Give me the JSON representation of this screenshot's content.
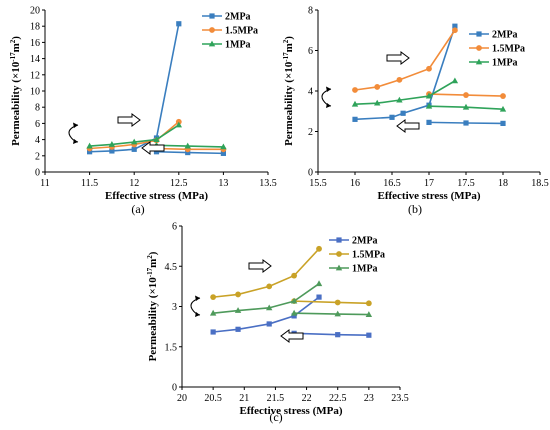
{
  "chart_data": [
    {
      "id": "a",
      "type": "line",
      "caption": "(a)",
      "xlabel": "Effective stress (MPa)",
      "ylabel_main": "Permeability (×10",
      "ylabel_exp": "-17",
      "ylabel_unit": "m",
      "ylabel_unit_exp": "2",
      "ylabel_close": ")",
      "xlim": [
        11,
        13.5
      ],
      "ylim": [
        0,
        20
      ],
      "xticks": [
        11,
        11.5,
        12,
        12.5,
        13,
        13.5
      ],
      "yticks": [
        0,
        2,
        4,
        6,
        8,
        10,
        12,
        14,
        16,
        18,
        20
      ],
      "xtick_labels": [
        "11",
        "11.5",
        "12",
        "12.5",
        "13",
        "13.5"
      ],
      "ytick_labels": [
        "0",
        "2",
        "4",
        "6",
        "8",
        "10",
        "12",
        "14",
        "16",
        "18",
        "20"
      ],
      "legend_position": "top-right",
      "series": [
        {
          "name": "2MPa",
          "color": "#3a7ebf",
          "marker": "square",
          "load": [
            [
              11.5,
              2.5
            ],
            [
              11.75,
              2.6
            ],
            [
              12.0,
              2.8
            ],
            [
              12.25,
              4.2
            ],
            [
              12.5,
              18.3
            ]
          ],
          "unload": [
            [
              12.25,
              2.5
            ],
            [
              12.6,
              2.4
            ],
            [
              13.0,
              2.3
            ]
          ]
        },
        {
          "name": "1.5MPa",
          "color": "#f28c3a",
          "marker": "circle",
          "load": [
            [
              11.5,
              2.9
            ],
            [
              11.75,
              3.1
            ],
            [
              12.0,
              3.4
            ],
            [
              12.25,
              3.9
            ],
            [
              12.5,
              6.2
            ]
          ],
          "unload": [
            [
              12.25,
              2.9
            ],
            [
              12.6,
              2.8
            ],
            [
              13.0,
              2.8
            ]
          ]
        },
        {
          "name": "1MPa",
          "color": "#2fa35a",
          "marker": "triangle",
          "load": [
            [
              11.5,
              3.2
            ],
            [
              11.75,
              3.4
            ],
            [
              12.0,
              3.7
            ],
            [
              12.25,
              4.0
            ],
            [
              12.5,
              5.8
            ]
          ],
          "unload": [
            [
              12.25,
              3.3
            ],
            [
              12.6,
              3.2
            ],
            [
              13.0,
              3.1
            ]
          ]
        }
      ]
    },
    {
      "id": "b",
      "type": "line",
      "caption": "(b)",
      "xlabel": "Effective stress (MPa)",
      "ylabel_main": "Permeability (×10",
      "ylabel_exp": "-17",
      "ylabel_unit": "m",
      "ylabel_unit_exp": "2",
      "ylabel_close": ")",
      "xlim": [
        15.5,
        18.5
      ],
      "ylim": [
        0,
        8
      ],
      "xticks": [
        15.5,
        16,
        16.5,
        17,
        17.5,
        18,
        18.5
      ],
      "yticks": [
        0,
        2,
        4,
        6,
        8
      ],
      "xtick_labels": [
        "15.5",
        "16",
        "16.5",
        "17",
        "17.5",
        "18",
        "18.5"
      ],
      "ytick_labels": [
        "0",
        "2",
        "4",
        "6",
        "8"
      ],
      "legend_position": "top-right",
      "series": [
        {
          "name": "2MPa",
          "color": "#3a7ebf",
          "marker": "square",
          "load": [
            [
              16.0,
              2.6
            ],
            [
              16.5,
              2.7
            ],
            [
              16.65,
              2.9
            ],
            [
              17.0,
              3.3
            ],
            [
              17.35,
              7.2
            ]
          ],
          "unload": [
            [
              17.0,
              2.45
            ],
            [
              17.5,
              2.42
            ],
            [
              18.0,
              2.4
            ]
          ]
        },
        {
          "name": "1.5MPa",
          "color": "#f28c3a",
          "marker": "circle",
          "load": [
            [
              16.0,
              4.05
            ],
            [
              16.3,
              4.2
            ],
            [
              16.6,
              4.55
            ],
            [
              17.0,
              5.1
            ],
            [
              17.35,
              7.0
            ]
          ],
          "unload": [
            [
              17.0,
              3.85
            ],
            [
              17.5,
              3.8
            ],
            [
              18.0,
              3.75
            ]
          ]
        },
        {
          "name": "1MPa",
          "color": "#2fa35a",
          "marker": "triangle",
          "load": [
            [
              16.0,
              3.35
            ],
            [
              16.3,
              3.4
            ],
            [
              16.6,
              3.55
            ],
            [
              17.0,
              3.75
            ],
            [
              17.35,
              4.5
            ]
          ],
          "unload": [
            [
              17.0,
              3.25
            ],
            [
              17.5,
              3.2
            ],
            [
              18.0,
              3.1
            ]
          ]
        }
      ]
    },
    {
      "id": "c",
      "type": "line",
      "caption": "(c)",
      "xlabel": "Effective stress (MPa)",
      "ylabel_main": "Permeability (×10",
      "ylabel_exp": "-17",
      "ylabel_unit": "m",
      "ylabel_unit_exp": "2",
      "ylabel_close": ")",
      "xlim": [
        20,
        23.5
      ],
      "ylim": [
        0,
        6
      ],
      "xticks": [
        20,
        20.5,
        21,
        21.5,
        22,
        22.5,
        23,
        23.5
      ],
      "yticks": [
        0,
        1.5,
        3,
        4.5,
        6
      ],
      "xtick_labels": [
        "20",
        "20.5",
        "21",
        "21.5",
        "22",
        "22.5",
        "23",
        "23.5"
      ],
      "ytick_labels": [
        "0",
        "1.5",
        "3",
        "4.5",
        "6"
      ],
      "legend_position": "top-right",
      "series": [
        {
          "name": "2MPa",
          "color": "#4a6fc4",
          "marker": "square",
          "load": [
            [
              20.5,
              2.05
            ],
            [
              20.9,
              2.15
            ],
            [
              21.4,
              2.35
            ],
            [
              21.8,
              2.65
            ],
            [
              22.2,
              3.35
            ]
          ],
          "unload": [
            [
              21.8,
              2.0
            ],
            [
              22.5,
              1.95
            ],
            [
              23.0,
              1.93
            ]
          ]
        },
        {
          "name": "1.5MPa",
          "color": "#c9a227",
          "marker": "circle",
          "load": [
            [
              20.5,
              3.35
            ],
            [
              20.9,
              3.45
            ],
            [
              21.4,
              3.75
            ],
            [
              21.8,
              4.15
            ],
            [
              22.2,
              5.15
            ]
          ],
          "unload": [
            [
              21.8,
              3.2
            ],
            [
              22.5,
              3.15
            ],
            [
              23.0,
              3.12
            ]
          ]
        },
        {
          "name": "1MPa",
          "color": "#4e9a5b",
          "marker": "triangle",
          "load": [
            [
              20.5,
              2.75
            ],
            [
              20.9,
              2.85
            ],
            [
              21.4,
              2.95
            ],
            [
              21.8,
              3.2
            ],
            [
              22.2,
              3.85
            ]
          ],
          "unload": [
            [
              21.8,
              2.75
            ],
            [
              22.5,
              2.72
            ],
            [
              23.0,
              2.7
            ]
          ]
        }
      ]
    }
  ]
}
